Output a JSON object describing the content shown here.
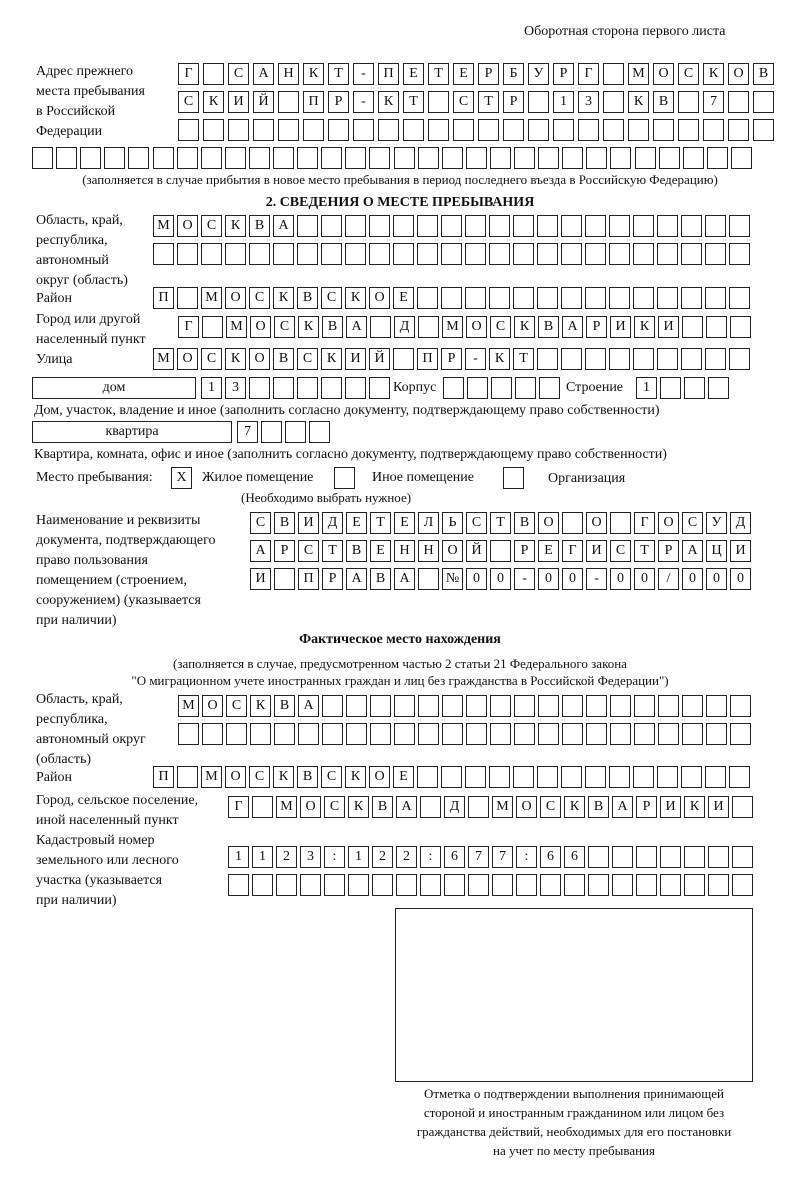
{
  "header": "Оборотная сторона первого листа",
  "previous_address": {
    "label": [
      "Адрес прежнего",
      "места пребывания",
      "в Российской",
      "Федерации"
    ],
    "rows": [
      [
        "Г",
        "",
        "С",
        "А",
        "Н",
        "К",
        "Т",
        "-",
        "П",
        "Е",
        "Т",
        "Е",
        "Р",
        "Б",
        "У",
        "Р",
        "Г",
        "",
        "М",
        "О",
        "С",
        "К",
        "О",
        "В"
      ],
      [
        "С",
        "К",
        "И",
        "Й",
        "",
        "П",
        "Р",
        "-",
        "К",
        "Т",
        "",
        "С",
        "Т",
        "Р",
        "",
        "1",
        "3",
        "",
        "К",
        "В",
        "",
        "7",
        "",
        ""
      ],
      [
        "",
        "",
        "",
        "",
        "",
        "",
        "",
        "",
        "",
        "",
        "",
        "",
        "",
        "",
        "",
        "",
        "",
        "",
        "",
        "",
        "",
        "",
        "",
        ""
      ],
      [
        "",
        "",
        "",
        "",
        "",
        "",
        "",
        "",
        "",
        "",
        "",
        "",
        "",
        "",
        "",
        "",
        "",
        "",
        "",
        "",
        "",
        "",
        "",
        "",
        "",
        "",
        "",
        "",
        "",
        ""
      ]
    ],
    "note": "(заполняется в случае прибытия в новое место пребывания в период последнего въезда в Российскую Федерацию)"
  },
  "section2": {
    "title": "2. СВЕДЕНИЯ О МЕСТЕ ПРЕБЫВАНИЯ",
    "region_label": [
      "Область, край,",
      "республика,",
      "автономный",
      "округ (область)"
    ],
    "region_rows": [
      [
        "М",
        "О",
        "С",
        "К",
        "В",
        "А",
        "",
        "",
        "",
        "",
        "",
        "",
        "",
        "",
        "",
        "",
        "",
        "",
        "",
        "",
        "",
        "",
        "",
        "",
        ""
      ],
      [
        "",
        "",
        "",
        "",
        "",
        "",
        "",
        "",
        "",
        "",
        "",
        "",
        "",
        "",
        "",
        "",
        "",
        "",
        "",
        "",
        "",
        "",
        "",
        "",
        ""
      ]
    ],
    "district_label": "Район",
    "district_row": [
      "П",
      "",
      "М",
      "О",
      "С",
      "К",
      "В",
      "С",
      "К",
      "О",
      "Е",
      "",
      "",
      "",
      "",
      "",
      "",
      "",
      "",
      "",
      "",
      "",
      "",
      "",
      ""
    ],
    "city_label": [
      "Город или другой",
      "населенный пункт"
    ],
    "city_row": [
      "Г",
      "",
      "М",
      "О",
      "С",
      "К",
      "В",
      "А",
      "",
      "Д",
      "",
      "М",
      "О",
      "С",
      "К",
      "В",
      "А",
      "Р",
      "И",
      "К",
      "И",
      "",
      "",
      ""
    ],
    "street_label": "Улица",
    "street_row": [
      "М",
      "О",
      "С",
      "К",
      "О",
      "В",
      "С",
      "К",
      "И",
      "Й",
      "",
      "П",
      "Р",
      "-",
      "К",
      "Т",
      "",
      "",
      "",
      "",
      "",
      "",
      "",
      "",
      ""
    ],
    "house_type": "дом",
    "house_cells": [
      "1",
      "3",
      "",
      "",
      "",
      "",
      "",
      ""
    ],
    "korpus_label": "Корпус",
    "korpus_cells": [
      "",
      "",
      "",
      "",
      ""
    ],
    "building_label": "Строение",
    "building_cells": [
      "1",
      "",
      "",
      ""
    ],
    "house_note": "Дом, участок, владение и иное (заполнить согласно документу, подтверждающему право собственности)",
    "flat_type": "квартира",
    "flat_cells": [
      "7",
      "",
      "",
      ""
    ],
    "flat_note": "Квартира, комната, офис и иное (заполнить согласно документу, подтверждающему право собственности)",
    "stay_label": "Место пребывания:",
    "stay_options": [
      {
        "label": "Жилое помещение",
        "mark": "X"
      },
      {
        "label": "Иное помещение",
        "mark": ""
      },
      {
        "label": "Организация",
        "mark": ""
      }
    ],
    "stay_note": "(Необходимо выбрать нужное)",
    "doc_label": [
      "Наименование и реквизиты",
      "документа, подтверждающего",
      "право пользования",
      "помещением (строением,",
      "сооружением) (указывается",
      "при наличии)"
    ],
    "doc_rows": [
      [
        "С",
        "В",
        "И",
        "Д",
        "Е",
        "Т",
        "Е",
        "Л",
        "Ь",
        "С",
        "Т",
        "В",
        "О",
        "",
        "О",
        "",
        "Г",
        "О",
        "С",
        "У",
        "Д"
      ],
      [
        "А",
        "Р",
        "С",
        "Т",
        "В",
        "Е",
        "Н",
        "Н",
        "О",
        "Й",
        "",
        "Р",
        "Е",
        "Г",
        "И",
        "С",
        "Т",
        "Р",
        "А",
        "Ц",
        "И"
      ],
      [
        "И",
        "",
        "П",
        "Р",
        "А",
        "В",
        "А",
        "",
        "№",
        "0",
        "0",
        "-",
        "0",
        "0",
        "-",
        "0",
        "0",
        "/",
        "0",
        "0",
        "0"
      ]
    ]
  },
  "actual": {
    "title": "Фактическое место нахождения",
    "note": [
      "(заполняется в случае, предусмотренном частью 2 статьи 21 Федерального закона",
      "\"О миграционном учете иностранных граждан и лиц без гражданства в Российской Федерации\")"
    ],
    "region_label": [
      "Область, край,",
      "республика,",
      "автономный округ",
      "(область)"
    ],
    "region_rows": [
      [
        "М",
        "О",
        "С",
        "К",
        "В",
        "А",
        "",
        "",
        "",
        "",
        "",
        "",
        "",
        "",
        "",
        "",
        "",
        "",
        "",
        "",
        "",
        "",
        "",
        ""
      ],
      [
        "",
        "",
        "",
        "",
        "",
        "",
        "",
        "",
        "",
        "",
        "",
        "",
        "",
        "",
        "",
        "",
        "",
        "",
        "",
        "",
        "",
        "",
        "",
        ""
      ]
    ],
    "district_label": "Район",
    "district_row": [
      "П",
      "",
      "М",
      "О",
      "С",
      "К",
      "В",
      "С",
      "К",
      "О",
      "Е",
      "",
      "",
      "",
      "",
      "",
      "",
      "",
      "",
      "",
      "",
      "",
      "",
      "",
      ""
    ],
    "city_label": [
      "Город, сельское поселение,",
      "иной населенный пункт"
    ],
    "city_row": [
      "Г",
      "",
      "М",
      "О",
      "С",
      "К",
      "В",
      "А",
      "",
      "Д",
      "",
      "М",
      "О",
      "С",
      "К",
      "В",
      "А",
      "Р",
      "И",
      "К",
      "И",
      ""
    ],
    "cadastral_label": [
      "Кадастровый номер",
      "земельного или лесного",
      "участка (указывается",
      "при наличии)"
    ],
    "cadastral_rows": [
      [
        "1",
        "1",
        "2",
        "3",
        ":",
        "1",
        "2",
        "2",
        ":",
        "6",
        "7",
        "7",
        ":",
        "6",
        "6",
        "",
        "",
        "",
        "",
        "",
        "",
        ""
      ],
      [
        "",
        "",
        "",
        "",
        "",
        "",
        "",
        "",
        "",
        "",
        "",
        "",
        "",
        "",
        "",
        "",
        "",
        "",
        "",
        "",
        "",
        ""
      ]
    ]
  },
  "stamp_caption": [
    "Отметка о подтверждении выполнения принимающей",
    "стороной и иностранным гражданином или лицом без",
    "гражданства действий, необходимых для его постановки",
    "на учет по месту пребывания"
  ]
}
